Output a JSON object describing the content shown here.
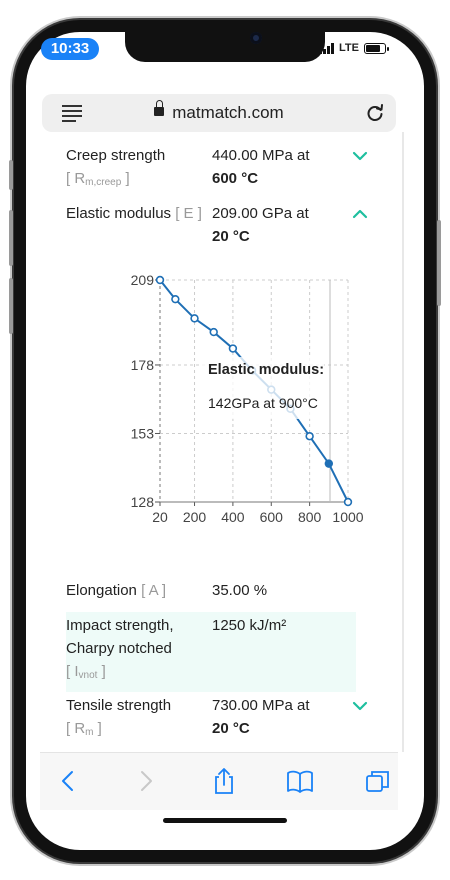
{
  "status_bar": {
    "time": "10:33",
    "network": "LTE"
  },
  "browser": {
    "url": "matmatch.com"
  },
  "properties": [
    {
      "name": "Creep strength",
      "symbol": "[ R",
      "symbol_sub": "m,creep",
      "symbol_end": " ]",
      "value_line1": "440.00 MPa at",
      "value_line2": "600 °C",
      "expanded": false
    },
    {
      "name": "Elastic modulus",
      "symbol": "[ E ]",
      "value_line1": "209.00 GPa at",
      "value_line2": "20 °C",
      "expanded": true
    },
    {
      "name": "Elongation",
      "symbol": "[ A ]",
      "value_line1": "35.00 %"
    },
    {
      "name_line1": "Impact strength,",
      "name_line2": "Charpy notched",
      "symbol": "[ I",
      "symbol_sub": "vnot",
      "symbol_end": " ]",
      "value_line1": "1250 kJ/m²"
    },
    {
      "name": "Tensile strength",
      "symbol": "[ R",
      "symbol_sub": "m",
      "symbol_end": " ]",
      "value_line1": "730.00 MPa at",
      "value_line2": "20 °C",
      "expanded": false
    }
  ],
  "chart_data": {
    "type": "line",
    "x_ticks": [
      20,
      200,
      400,
      600,
      800,
      1000
    ],
    "x_tick_labels": [
      "20",
      "200",
      "400",
      "600",
      "800",
      "1000"
    ],
    "y_ticks": [
      128,
      153,
      178,
      209
    ],
    "y_tick_labels": [
      "128",
      "153",
      "178",
      "209"
    ],
    "xlim": [
      20,
      1000
    ],
    "ylim": [
      128,
      209
    ],
    "series": [
      {
        "x": [
          20,
          100,
          200,
          300,
          400,
          500,
          600,
          700,
          800,
          900,
          1000
        ],
        "y": [
          209,
          202,
          195,
          190,
          184,
          176,
          169,
          162,
          152,
          142,
          128
        ]
      }
    ],
    "highlight_index": 9,
    "tooltip": {
      "title": "Elastic modulus:",
      "value": "142GPa at 900°C"
    },
    "grid": true,
    "colors": {
      "line": "#1f6fb5",
      "marker_fill": "#ffffff",
      "grid": "#cccccc"
    }
  },
  "icons": {
    "expand": "chevron-down-icon",
    "collapse": "chevron-up-icon",
    "accent": "#1fbf9f"
  }
}
